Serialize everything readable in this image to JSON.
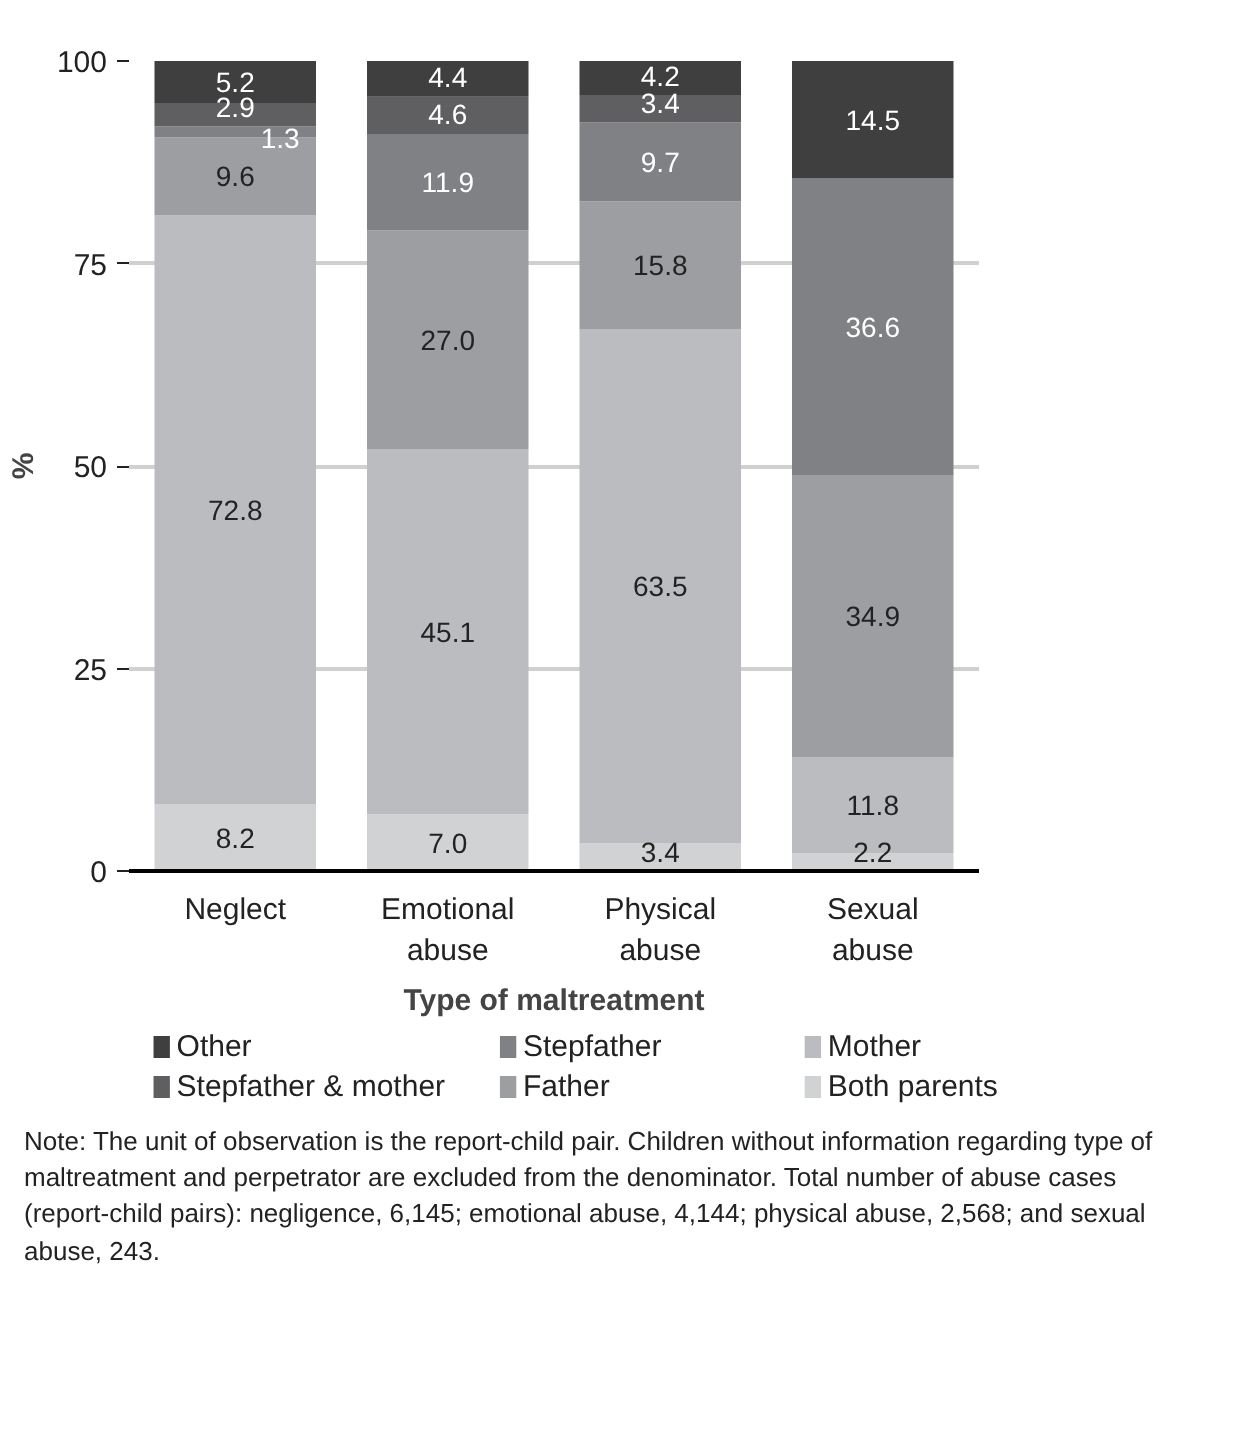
{
  "chart_data": {
    "type": "bar",
    "stacked": true,
    "xlabel": "Type of maltreatment",
    "ylabel": "%",
    "categories": [
      "Neglect",
      "Emotional abuse",
      "Physical abuse",
      "Sexual abuse"
    ],
    "series": [
      {
        "name": "Both parents",
        "color": "#d1d2d4",
        "values": [
          8.2,
          7.0,
          3.4,
          2.2
        ],
        "value_labels": [
          "8.2",
          "7.0",
          "3.4",
          "2.2"
        ]
      },
      {
        "name": "Mother",
        "color": "#bbbcbf",
        "values": [
          72.8,
          45.1,
          63.5,
          11.8
        ],
        "value_labels": [
          "72.8",
          "45.1",
          "63.5",
          "11.8"
        ]
      },
      {
        "name": "Father",
        "color": "#9d9ea1",
        "values": [
          9.6,
          27.0,
          15.8,
          34.9
        ],
        "value_labels": [
          "9.6",
          "27.0",
          "15.8",
          "34.9"
        ]
      },
      {
        "name": "Stepfather",
        "color": "#808184",
        "values": [
          1.3,
          11.9,
          9.7,
          36.6
        ],
        "value_labels": [
          "1.3",
          "11.9",
          "9.7",
          "36.6"
        ]
      },
      {
        "name": "Stepfather & mother",
        "color": "#5f5f61",
        "values": [
          2.9,
          4.6,
          3.4,
          null
        ],
        "value_labels": [
          "2.9",
          "4.6",
          "3.4",
          null
        ]
      },
      {
        "name": "Other",
        "color": "#3f3f40",
        "values": [
          5.2,
          4.4,
          4.2,
          14.5
        ],
        "value_labels": [
          "5.2",
          "4.4",
          "4.2",
          "14.5"
        ]
      }
    ],
    "ylim": [
      0,
      100
    ],
    "yticks": [
      0,
      25,
      50,
      75,
      100
    ],
    "grid": "y",
    "legend": "bottom",
    "annotations": [
      "Note: The unit of observation is the report-child pair. Children without information regarding type of maltreatment and perpetrator are excluded from the denominator. Total number of abuse cases (report-child pairs): negligence, 6,145; emotional abuse, 4,144; physical abuse, 2,568; and sexual abuse, 243."
    ]
  }
}
